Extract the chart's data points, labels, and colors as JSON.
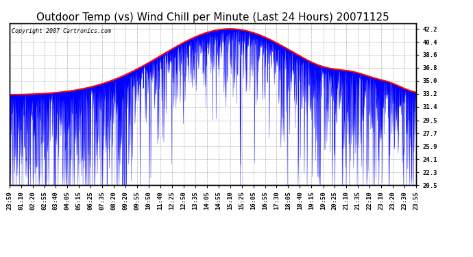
{
  "title": "Outdoor Temp (vs) Wind Chill per Minute (Last 24 Hours) 20071125",
  "copyright": "Copyright 2007 Cartronics.com",
  "ylabel_right_ticks": [
    42.2,
    40.4,
    38.6,
    36.8,
    35.0,
    33.2,
    31.4,
    29.5,
    27.7,
    25.9,
    24.1,
    22.3,
    20.5
  ],
  "ylim": [
    20.5,
    43.0
  ],
  "x_labels": [
    "23:59",
    "01:10",
    "02:20",
    "02:55",
    "03:40",
    "04:05",
    "05:15",
    "06:25",
    "07:35",
    "08:20",
    "09:20",
    "09:55",
    "10:50",
    "11:40",
    "12:25",
    "12:50",
    "13:35",
    "14:05",
    "14:55",
    "15:10",
    "15:25",
    "16:05",
    "16:55",
    "17:30",
    "18:05",
    "18:40",
    "19:15",
    "19:50",
    "20:25",
    "21:10",
    "21:35",
    "22:10",
    "23:10",
    "23:20",
    "23:30",
    "23:55"
  ],
  "background_color": "#ffffff",
  "grid_color": "#999999",
  "outer_temp_color": "#ff0000",
  "wind_chill_color": "#0000ff",
  "title_fontsize": 11,
  "tick_fontsize": 6.5
}
